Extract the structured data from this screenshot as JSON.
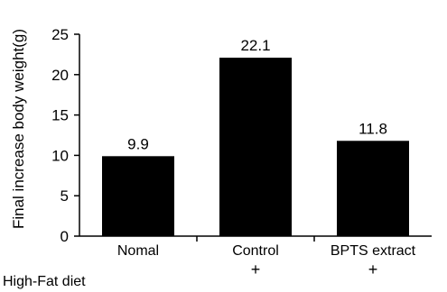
{
  "chart_data": {
    "type": "bar",
    "categories": [
      "Nomal",
      "Control",
      "BPTS extract"
    ],
    "values": [
      9.9,
      22.1,
      11.8
    ],
    "value_labels": [
      "9.9",
      "22.1",
      "11.8"
    ],
    "ylabel": "Final increase body weight(g)",
    "ylim": [
      0,
      25
    ],
    "yticks": [
      0,
      5,
      10,
      15,
      20,
      25
    ],
    "grid": false,
    "legend": "none",
    "bar_color": "#000000"
  },
  "diet_row": {
    "label": "High-Fat diet",
    "marks": [
      "",
      "+",
      "+"
    ]
  }
}
